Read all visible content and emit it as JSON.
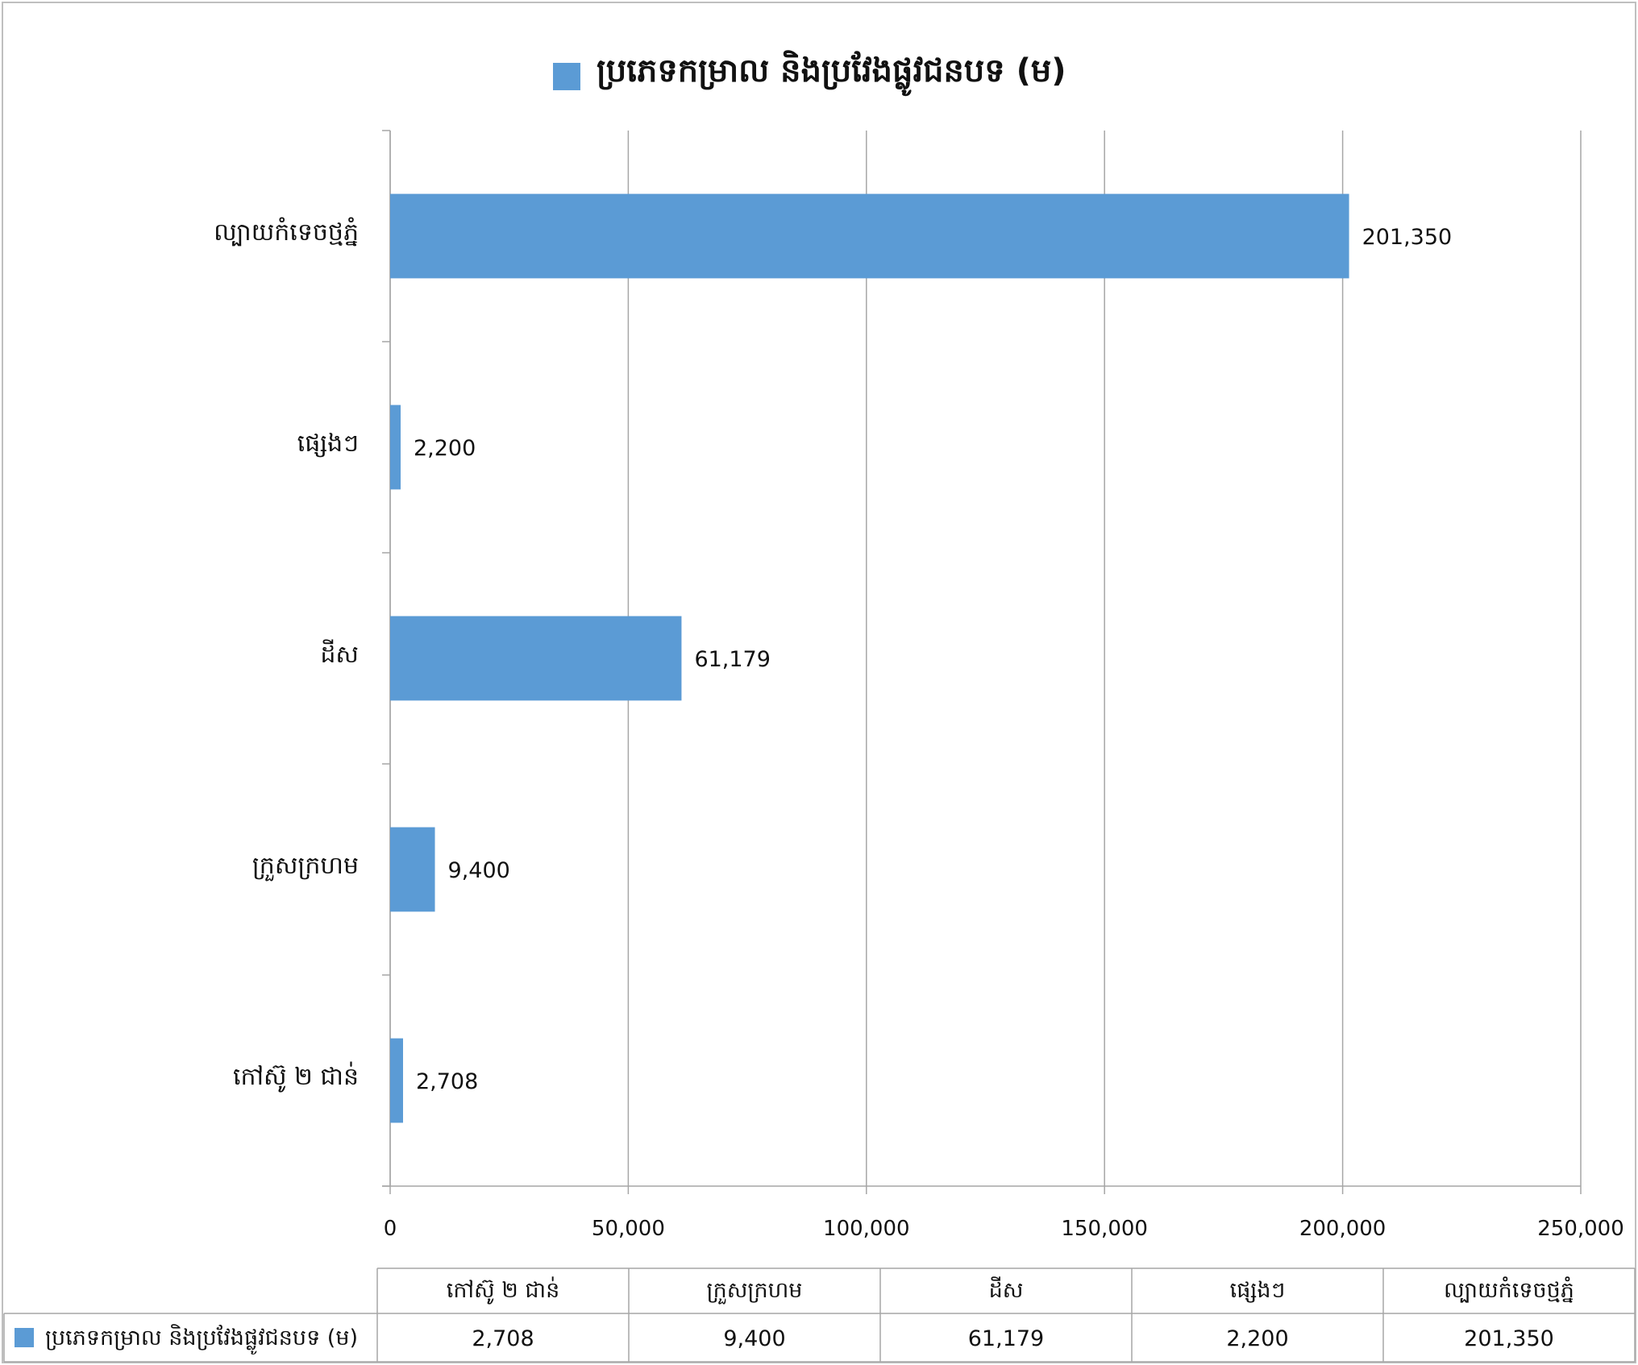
{
  "chart_data": {
    "type": "bar",
    "orientation": "horizontal",
    "title": "ប្រភេទកម្រាល និងប្រវែងផ្លូវជនបទ (ម)",
    "categories": [
      "កៅស៊ូ ២ ជាន់",
      "ក្រួសក្រហម",
      "ដីស",
      "ផ្សេងៗ",
      "ល្បាយកំទេចថ្មភ្នំ"
    ],
    "series": [
      {
        "name": "ប្រភេទកម្រាល និងប្រវែងផ្លូវជនបទ (ម)",
        "values": [
          2708,
          9400,
          61179,
          2200,
          201350
        ],
        "labels": [
          "2,708",
          "9,400",
          "61,179",
          "2,200",
          "201,350"
        ],
        "color": "#5b9bd5"
      }
    ],
    "xlim": [
      0,
      250000
    ],
    "xticks": [
      0,
      50000,
      100000,
      150000,
      200000,
      250000
    ],
    "xtick_labels": [
      "0",
      "50,000",
      "100,000",
      "150,000",
      "200,000",
      "250,000"
    ],
    "grid": true,
    "legend": "top",
    "data_table": true
  }
}
